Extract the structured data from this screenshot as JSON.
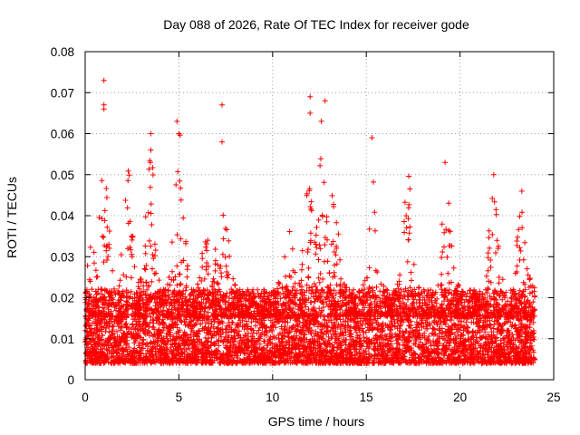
{
  "chart_data": {
    "type": "scatter",
    "title": "Day 088 of 2026, Rate Of TEC Index for receiver gode",
    "xlabel": "GPS time / hours",
    "ylabel": "ROTI / TECUs",
    "xlim": [
      0,
      25
    ],
    "ylim": [
      0,
      0.08
    ],
    "x_ticks": [
      "0",
      "5",
      "10",
      "15",
      "20",
      "25"
    ],
    "y_ticks": [
      "0",
      "0.01",
      "0.02",
      "0.03",
      "0.04",
      "0.05",
      "0.06",
      "0.07",
      "0.08"
    ],
    "grid": true,
    "marker": "+",
    "series_color": "#ff0000",
    "series": [
      {
        "name": "ROTI",
        "x_range": [
          0,
          24
        ],
        "baseline_range": [
          0.004,
          0.022
        ],
        "notable_points": [
          {
            "x": 1.0,
            "y": 0.073
          },
          {
            "x": 1.0,
            "y": 0.067
          },
          {
            "x": 1.0,
            "y": 0.066
          },
          {
            "x": 3.5,
            "y": 0.06
          },
          {
            "x": 3.5,
            "y": 0.056
          },
          {
            "x": 4.9,
            "y": 0.063
          },
          {
            "x": 5.0,
            "y": 0.06
          },
          {
            "x": 7.3,
            "y": 0.067
          },
          {
            "x": 7.3,
            "y": 0.058
          },
          {
            "x": 12.0,
            "y": 0.069
          },
          {
            "x": 12.0,
            "y": 0.065
          },
          {
            "x": 12.8,
            "y": 0.068
          },
          {
            "x": 12.6,
            "y": 0.063
          },
          {
            "x": 15.3,
            "y": 0.059
          },
          {
            "x": 19.2,
            "y": 0.053
          },
          {
            "x": 21.8,
            "y": 0.05
          },
          {
            "x": 23.3,
            "y": 0.046
          }
        ],
        "activity_peaks": [
          {
            "x": 0.4,
            "ymax": 0.034
          },
          {
            "x": 1.0,
            "ymax": 0.055
          },
          {
            "x": 2.3,
            "ymax": 0.052
          },
          {
            "x": 3.5,
            "ymax": 0.056
          },
          {
            "x": 5.0,
            "ymax": 0.061
          },
          {
            "x": 6.6,
            "ymax": 0.05
          },
          {
            "x": 7.4,
            "ymax": 0.045
          },
          {
            "x": 10.8,
            "ymax": 0.04
          },
          {
            "x": 11.9,
            "ymax": 0.052
          },
          {
            "x": 12.6,
            "ymax": 0.058
          },
          {
            "x": 13.3,
            "ymax": 0.05
          },
          {
            "x": 15.4,
            "ymax": 0.052
          },
          {
            "x": 17.2,
            "ymax": 0.052
          },
          {
            "x": 19.3,
            "ymax": 0.05
          },
          {
            "x": 21.8,
            "ymax": 0.048
          },
          {
            "x": 23.3,
            "ymax": 0.045
          }
        ]
      }
    ]
  }
}
